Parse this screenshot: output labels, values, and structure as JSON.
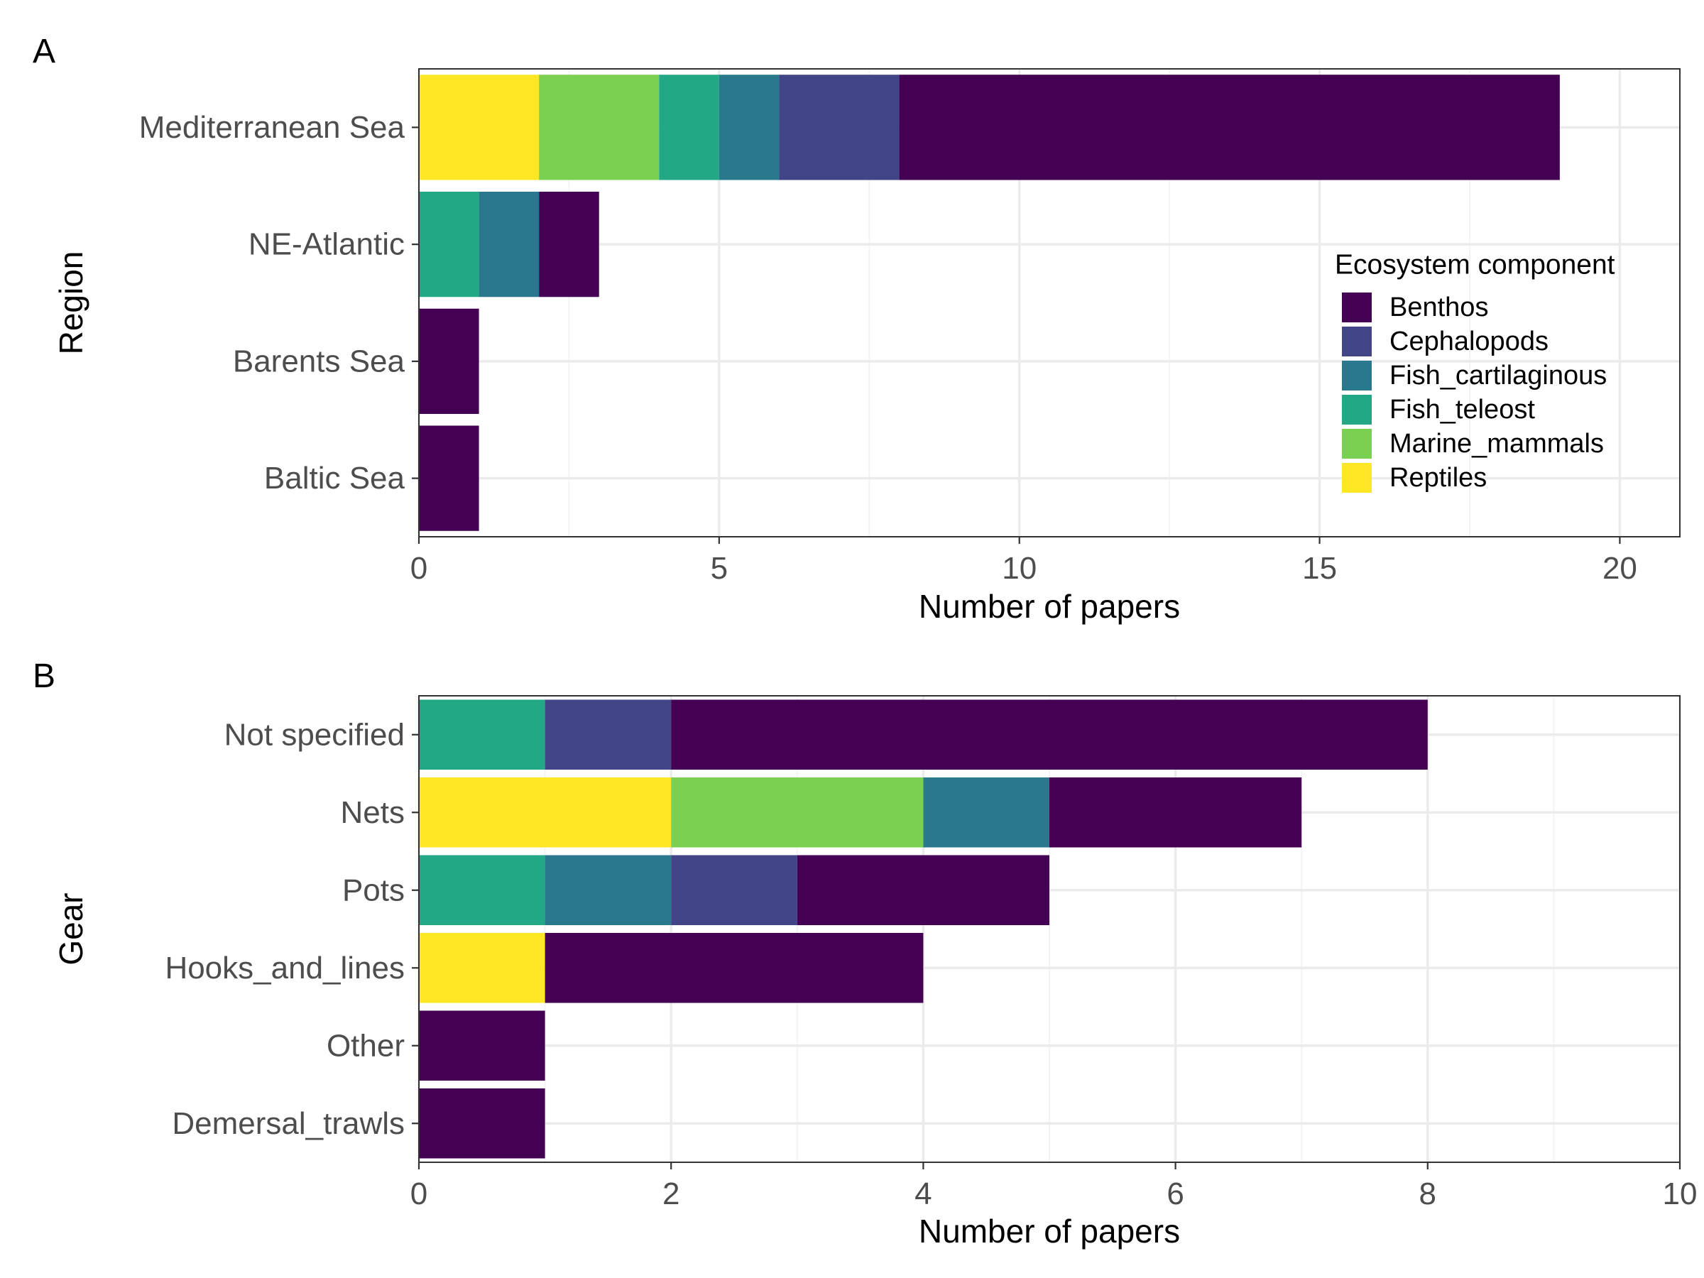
{
  "legend": {
    "title": "Ecosystem component",
    "placement": "inside-right",
    "items": [
      {
        "name": "Benthos",
        "color": "#440154"
      },
      {
        "name": "Cephalopods",
        "color": "#414487"
      },
      {
        "name": "Fish_cartilaginous",
        "color": "#2A788E"
      },
      {
        "name": "Fish_teleost",
        "color": "#22A884"
      },
      {
        "name": "Marine_mammals",
        "color": "#7AD151"
      },
      {
        "name": "Reptiles",
        "color": "#FDE725"
      }
    ]
  },
  "chart_data": [
    {
      "type": "bar",
      "orientation": "horizontal",
      "stacked": true,
      "panel_label": "A",
      "xlabel": "Number of papers",
      "ylabel": "Region",
      "xlim": [
        0,
        21
      ],
      "x_ticks": [
        0,
        5,
        10,
        15,
        20
      ],
      "grid": true,
      "categories": [
        "Mediterranean Sea",
        "NE-Atlantic",
        "Barents Sea",
        "Baltic Sea"
      ],
      "stack_order": [
        "Reptiles",
        "Marine_mammals",
        "Fish_teleost",
        "Fish_cartilaginous",
        "Cephalopods",
        "Benthos"
      ],
      "series": [
        {
          "name": "Benthos",
          "values": [
            11,
            1,
            1,
            1
          ]
        },
        {
          "name": "Cephalopods",
          "values": [
            2,
            0,
            0,
            0
          ]
        },
        {
          "name": "Fish_cartilaginous",
          "values": [
            1,
            1,
            0,
            0
          ]
        },
        {
          "name": "Fish_teleost",
          "values": [
            1,
            1,
            0,
            0
          ]
        },
        {
          "name": "Marine_mammals",
          "values": [
            2,
            0,
            0,
            0
          ]
        },
        {
          "name": "Reptiles",
          "values": [
            2,
            0,
            0,
            0
          ]
        }
      ]
    },
    {
      "type": "bar",
      "orientation": "horizontal",
      "stacked": true,
      "panel_label": "B",
      "xlabel": "Number of papers",
      "ylabel": "Gear",
      "xlim": [
        0,
        10
      ],
      "x_ticks": [
        0,
        2,
        4,
        6,
        8,
        10
      ],
      "grid": true,
      "categories": [
        "Not specified",
        "Nets",
        "Pots",
        "Hooks_and_lines",
        "Other",
        "Demersal_trawls"
      ],
      "stack_order": [
        "Reptiles",
        "Marine_mammals",
        "Fish_teleost",
        "Fish_cartilaginous",
        "Cephalopods",
        "Benthos"
      ],
      "series": [
        {
          "name": "Benthos",
          "values": [
            6,
            2,
            2,
            3,
            1,
            1
          ]
        },
        {
          "name": "Cephalopods",
          "values": [
            1,
            0,
            1,
            0,
            0,
            0
          ]
        },
        {
          "name": "Fish_cartilaginous",
          "values": [
            0,
            1,
            1,
            0,
            0,
            0
          ]
        },
        {
          "name": "Fish_teleost",
          "values": [
            1,
            0,
            1,
            0,
            0,
            0
          ]
        },
        {
          "name": "Marine_mammals",
          "values": [
            0,
            2,
            0,
            0,
            0,
            0
          ]
        },
        {
          "name": "Reptiles",
          "values": [
            0,
            2,
            0,
            1,
            0,
            0
          ]
        }
      ]
    }
  ]
}
